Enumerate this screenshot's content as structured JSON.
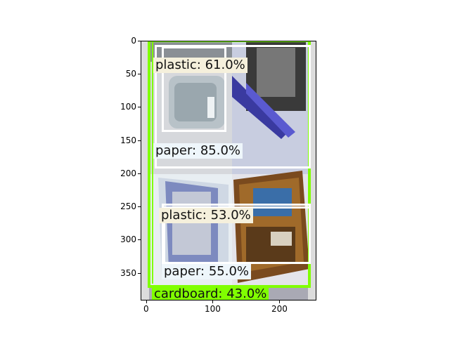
{
  "axes": {
    "x_ticks": [
      "0",
      "100",
      "200"
    ],
    "y_ticks": [
      "0",
      "50",
      "100",
      "150",
      "200",
      "250",
      "300",
      "350"
    ]
  },
  "colors": {
    "green_box": "#80ff00",
    "white_box": "#ffffff",
    "label_bg_plastic": "#f5f0dc",
    "label_bg_paper": "#f0f8ff"
  },
  "detections": [
    {
      "label": "plastic: 61.0%",
      "kind": "plastic"
    },
    {
      "label": "paper: 85.0%",
      "kind": "paper"
    },
    {
      "label": "plastic: 53.0%",
      "kind": "plastic"
    },
    {
      "label": "paper: 55.0%",
      "kind": "paper"
    },
    {
      "label": "cardboard: 43.0%",
      "kind": "cardboard"
    }
  ]
}
